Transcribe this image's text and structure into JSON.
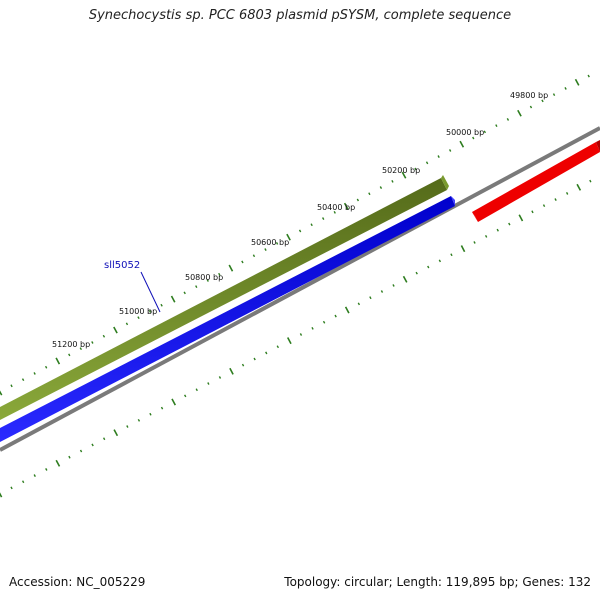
{
  "title": "Synechocystis sp. PCC 6803 plasmid pSYSM, complete sequence",
  "footer": {
    "accession": "Accession: NC_005229",
    "summary": "Topology: circular; Length: 119,895 bp; Genes: 132"
  },
  "position_labels": [
    "49800 bp",
    "50000 bp",
    "50200 bp",
    "50400 bp",
    "50600 bp",
    "50800 bp",
    "51000 bp",
    "51200 bp"
  ],
  "gene_label": "sll5052",
  "colors": {
    "forward_gene": "#6b8e23",
    "reverse_gene": "#0000ee",
    "reverse_gene_other": "#ee0000",
    "backbone": "#808080",
    "tick": "#2e7d1f",
    "gene_label": "#1010b8"
  }
}
